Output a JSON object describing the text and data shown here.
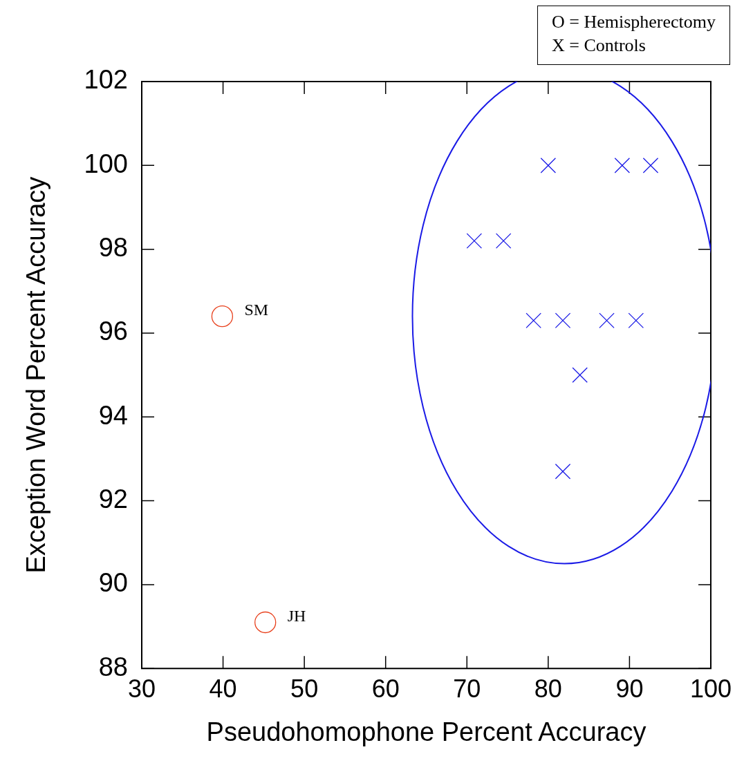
{
  "chart_data": {
    "type": "scatter",
    "xlabel": "Pseudohomophone Percent Accuracy",
    "ylabel": "Exception Word Percent Accuracy",
    "xlim": [
      30,
      100
    ],
    "xticks": [
      30,
      40,
      50,
      60,
      70,
      80,
      90,
      100
    ],
    "ylim": [
      88,
      102
    ],
    "yticks": [
      88,
      90,
      92,
      94,
      96,
      98,
      100,
      102
    ],
    "grid": false,
    "legend": false,
    "series": [
      {
        "color": "#e8401c",
        "marker": "circle",
        "x": [
          39.9,
          45.2
        ],
        "values": [
          96.4,
          89.1
        ]
      },
      {
        "color": "#1a1ae6",
        "marker": "cross",
        "x": [
          80,
          89.1,
          92.6,
          70.9,
          74.5,
          78.2,
          81.8,
          87.2,
          90.8,
          83.9,
          81.8
        ],
        "values": [
          100,
          100,
          100,
          98.2,
          98.2,
          96.3,
          96.3,
          96.3,
          96.3,
          95.0,
          92.7
        ]
      }
    ],
    "annotations": [
      "O = Hemispherectomy",
      "X = Controls",
      {
        "text": "SM",
        "x": 39.9,
        "y": 96.4
      },
      {
        "text": "JH",
        "x": 45.2,
        "y": 89.1
      }
    ]
  }
}
